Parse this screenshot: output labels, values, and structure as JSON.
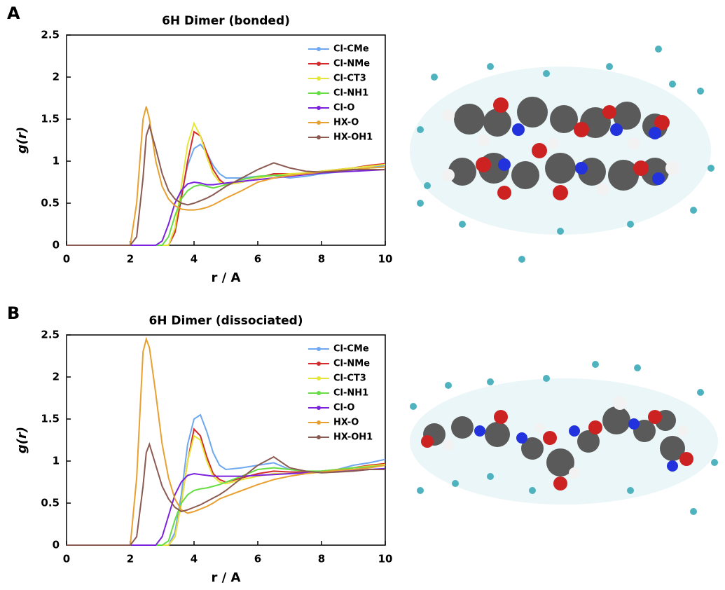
{
  "chart_data": [
    {
      "type": "line",
      "panel": "A",
      "title": "6H Dimer (bonded)",
      "xlabel": "r / A",
      "ylabel": "g(r)",
      "x": [
        0,
        1,
        2,
        2.2,
        2.4,
        2.5,
        2.6,
        2.8,
        3,
        3.2,
        3.4,
        3.6,
        3.8,
        4,
        4.2,
        4.4,
        4.6,
        4.8,
        5,
        5.5,
        6,
        6.5,
        7,
        7.5,
        8,
        8.5,
        9,
        9.5,
        10
      ],
      "xlim": [
        0,
        10
      ],
      "ylim": [
        0,
        2.5
      ],
      "xticks": [
        0,
        2,
        4,
        6,
        8,
        10
      ],
      "yticks": [
        0,
        0.5,
        1,
        1.5,
        2,
        2.5
      ],
      "legend": "upper right",
      "series": [
        {
          "name": "Cl-CMe",
          "color": "#6fa8f0",
          "values": [
            0,
            0,
            0,
            0,
            0,
            0,
            0,
            0,
            0,
            0,
            0.2,
            0.6,
            0.95,
            1.15,
            1.2,
            1.1,
            0.95,
            0.85,
            0.8,
            0.8,
            0.82,
            0.83,
            0.8,
            0.82,
            0.85,
            0.87,
            0.9,
            0.92,
            0.95
          ]
        },
        {
          "name": "Cl-NMe",
          "color": "#d42a2a",
          "values": [
            0,
            0,
            0,
            0,
            0,
            0,
            0,
            0,
            0,
            0,
            0.15,
            0.55,
            1.0,
            1.35,
            1.3,
            1.1,
            0.9,
            0.78,
            0.72,
            0.75,
            0.8,
            0.85,
            0.85,
            0.85,
            0.88,
            0.9,
            0.92,
            0.95,
            0.97
          ]
        },
        {
          "name": "Cl-CT3",
          "color": "#e6e63a",
          "values": [
            0,
            0,
            0,
            0,
            0,
            0,
            0,
            0,
            0,
            0,
            0.2,
            0.7,
            1.2,
            1.45,
            1.3,
            1.05,
            0.85,
            0.75,
            0.72,
            0.75,
            0.8,
            0.83,
            0.85,
            0.86,
            0.88,
            0.9,
            0.92,
            0.94,
            0.96
          ]
        },
        {
          "name": "Cl-NH1",
          "color": "#66dd44",
          "values": [
            0,
            0,
            0,
            0,
            0,
            0,
            0,
            0,
            0,
            0.1,
            0.35,
            0.55,
            0.65,
            0.7,
            0.72,
            0.7,
            0.68,
            0.7,
            0.72,
            0.78,
            0.82,
            0.83,
            0.83,
            0.84,
            0.86,
            0.88,
            0.9,
            0.92,
            0.93
          ]
        },
        {
          "name": "Cl-O",
          "color": "#7a22dd",
          "values": [
            0,
            0,
            0,
            0,
            0,
            0,
            0,
            0,
            0.05,
            0.25,
            0.5,
            0.65,
            0.73,
            0.75,
            0.74,
            0.72,
            0.72,
            0.73,
            0.74,
            0.76,
            0.78,
            0.8,
            0.82,
            0.84,
            0.86,
            0.87,
            0.88,
            0.89,
            0.9
          ]
        },
        {
          "name": "HX-O",
          "color": "#e8a030",
          "values": [
            0,
            0,
            0,
            0.5,
            1.5,
            1.65,
            1.5,
            1.0,
            0.7,
            0.55,
            0.47,
            0.43,
            0.42,
            0.42,
            0.43,
            0.45,
            0.48,
            0.52,
            0.56,
            0.65,
            0.75,
            0.8,
            0.83,
            0.85,
            0.87,
            0.89,
            0.9,
            0.92,
            0.93
          ]
        },
        {
          "name": "HX-OH1",
          "color": "#8b5a50",
          "values": [
            0,
            0,
            0,
            0.1,
            0.8,
            1.3,
            1.42,
            1.15,
            0.85,
            0.65,
            0.55,
            0.5,
            0.48,
            0.5,
            0.53,
            0.56,
            0.6,
            0.65,
            0.7,
            0.8,
            0.9,
            0.98,
            0.92,
            0.88,
            0.87,
            0.88,
            0.9,
            0.9,
            0.9
          ]
        }
      ]
    },
    {
      "type": "line",
      "panel": "B",
      "title": "6H Dimer (dissociated)",
      "xlabel": "r / A",
      "ylabel": "g(r)",
      "x": [
        0,
        1,
        2,
        2.2,
        2.4,
        2.5,
        2.6,
        2.8,
        3,
        3.2,
        3.4,
        3.6,
        3.8,
        4,
        4.2,
        4.4,
        4.6,
        4.8,
        5,
        5.5,
        6,
        6.5,
        7,
        7.5,
        8,
        8.5,
        9,
        9.5,
        10
      ],
      "xlim": [
        0,
        10
      ],
      "ylim": [
        0,
        2.5
      ],
      "xticks": [
        0,
        2,
        4,
        6,
        8,
        10
      ],
      "yticks": [
        0,
        0.5,
        1,
        1.5,
        2,
        2.5
      ],
      "legend": "upper right",
      "series": [
        {
          "name": "Cl-CMe",
          "color": "#6fa8f0",
          "values": [
            0,
            0,
            0,
            0,
            0,
            0,
            0,
            0,
            0,
            0,
            0.15,
            0.6,
            1.2,
            1.5,
            1.55,
            1.35,
            1.1,
            0.95,
            0.9,
            0.92,
            0.95,
            0.98,
            0.9,
            0.88,
            0.87,
            0.9,
            0.95,
            0.98,
            1.02
          ]
        },
        {
          "name": "Cl-NMe",
          "color": "#d42a2a",
          "values": [
            0,
            0,
            0,
            0,
            0,
            0,
            0,
            0,
            0,
            0,
            0.1,
            0.5,
            1.0,
            1.38,
            1.3,
            1.05,
            0.85,
            0.78,
            0.75,
            0.8,
            0.85,
            0.88,
            0.87,
            0.87,
            0.88,
            0.9,
            0.92,
            0.95,
            0.97
          ]
        },
        {
          "name": "Cl-CT3",
          "color": "#e6e63a",
          "values": [
            0,
            0,
            0,
            0,
            0,
            0,
            0,
            0,
            0,
            0,
            0.1,
            0.5,
            1.0,
            1.3,
            1.25,
            1.0,
            0.82,
            0.75,
            0.73,
            0.78,
            0.82,
            0.85,
            0.85,
            0.86,
            0.88,
            0.9,
            0.92,
            0.94,
            0.96
          ]
        },
        {
          "name": "Cl-NH1",
          "color": "#66dd44",
          "values": [
            0,
            0,
            0,
            0,
            0,
            0,
            0,
            0,
            0,
            0.05,
            0.3,
            0.5,
            0.6,
            0.65,
            0.67,
            0.68,
            0.7,
            0.72,
            0.75,
            0.82,
            0.9,
            0.92,
            0.9,
            0.88,
            0.88,
            0.9,
            0.92,
            0.93,
            0.95
          ]
        },
        {
          "name": "Cl-O",
          "color": "#7a22dd",
          "values": [
            0,
            0,
            0,
            0,
            0,
            0,
            0,
            0,
            0.1,
            0.35,
            0.6,
            0.75,
            0.83,
            0.85,
            0.84,
            0.83,
            0.82,
            0.82,
            0.82,
            0.82,
            0.83,
            0.84,
            0.85,
            0.86,
            0.87,
            0.88,
            0.89,
            0.9,
            0.91
          ]
        },
        {
          "name": "HX-O",
          "color": "#e8a030",
          "values": [
            0,
            0,
            0,
            0.8,
            2.3,
            2.45,
            2.35,
            1.8,
            1.2,
            0.8,
            0.55,
            0.42,
            0.38,
            0.4,
            0.43,
            0.46,
            0.5,
            0.55,
            0.58,
            0.65,
            0.72,
            0.78,
            0.82,
            0.85,
            0.87,
            0.89,
            0.9,
            0.92,
            0.95
          ]
        },
        {
          "name": "HX-OH1",
          "color": "#8b5a50",
          "values": [
            0,
            0,
            0,
            0.1,
            0.7,
            1.1,
            1.2,
            0.95,
            0.7,
            0.55,
            0.45,
            0.4,
            0.42,
            0.45,
            0.48,
            0.52,
            0.56,
            0.6,
            0.65,
            0.8,
            0.95,
            1.05,
            0.92,
            0.88,
            0.86,
            0.87,
            0.88,
            0.9,
            0.9
          ]
        }
      ]
    }
  ]
}
